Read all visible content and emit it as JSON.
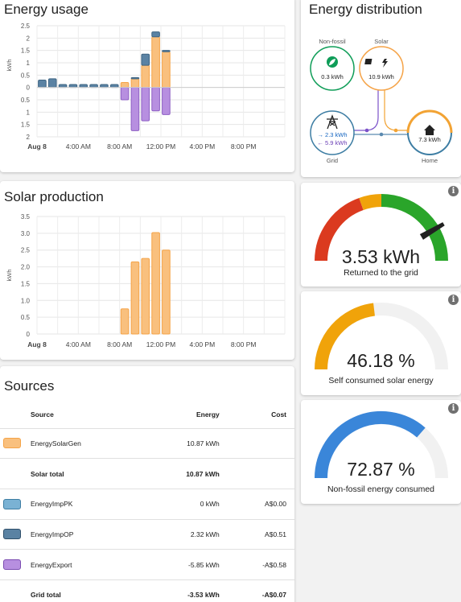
{
  "energy_usage": {
    "title": "Energy usage",
    "ylabel": "kWh",
    "chart_data": {
      "type": "bar",
      "title": "Energy usage",
      "ylabel": "kWh",
      "y_ticks_top": [
        "2.5",
        "2",
        "1.5",
        "1",
        "0.5",
        "0"
      ],
      "y_ticks_bottom": [
        "0.5",
        "1",
        "1.5",
        "2"
      ],
      "x_ticks": [
        "Aug 8",
        "4:00 AM",
        "8:00 AM",
        "12:00 PM",
        "4:00 PM",
        "8:00 PM"
      ],
      "ylim": [
        -2,
        2.5
      ],
      "hours": [
        0,
        1,
        2,
        3,
        4,
        5,
        6,
        7,
        8,
        9,
        10,
        11,
        12,
        13
      ],
      "series": [
        {
          "name": "EnergySolarGen",
          "color": "#f9c07e",
          "stroke": "#f5a347",
          "values": [
            0,
            0,
            0,
            0,
            0,
            0,
            0,
            0,
            0.2,
            0.35,
            0.9,
            2.05,
            1.45,
            0
          ]
        },
        {
          "name": "EnergyImpOP",
          "color": "#5a82a3",
          "stroke": "#3f6583",
          "values": [
            0.3,
            0.35,
            0.12,
            0.12,
            0.12,
            0.12,
            0.12,
            0.12,
            0,
            0.05,
            0.45,
            0.2,
            0.05,
            0
          ]
        },
        {
          "name": "EnergyExport",
          "color": "#b78fe0",
          "stroke": "#8d5fc4",
          "values": [
            0,
            0,
            0,
            0,
            0,
            0,
            0,
            0,
            -0.5,
            -1.75,
            -1.35,
            -0.95,
            -1.1,
            0
          ]
        }
      ]
    }
  },
  "solar_production": {
    "title": "Solar production",
    "ylabel": "kWh",
    "chart_data": {
      "type": "bar",
      "title": "Solar production",
      "ylabel": "kWh",
      "y_ticks": [
        "0",
        "0.5",
        "1.0",
        "1.5",
        "2.0",
        "2.5",
        "3.0",
        "3.5"
      ],
      "x_ticks": [
        "Aug 8",
        "4:00 AM",
        "8:00 AM",
        "12:00 PM",
        "4:00 PM",
        "8:00 PM"
      ],
      "ylim": [
        0,
        3.5
      ],
      "hours": [
        8,
        9,
        10,
        11,
        12
      ],
      "series": [
        {
          "name": "EnergySolarGen",
          "color": "#f9c07e",
          "stroke": "#f5a347",
          "values": [
            0.75,
            2.15,
            2.25,
            3.02,
            2.5
          ]
        }
      ]
    }
  },
  "distribution": {
    "title": "Energy distribution",
    "nonfossil": {
      "label": "Non-fossil",
      "value": "0.3 kWh"
    },
    "solar": {
      "label": "Solar",
      "value": "10.9 kWh"
    },
    "grid": {
      "label": "Grid",
      "import": "→ 2.3 kWh",
      "export": "← 5.9 kWh"
    },
    "home": {
      "label": "Home",
      "value": "7.3 kWh"
    }
  },
  "gauges": [
    {
      "value": "3.53 kWh",
      "label": "Returned to the grid",
      "fraction": 0.83
    },
    {
      "value": "46.18 %",
      "label": "Self consumed solar energy",
      "fraction": 0.4618,
      "color": "#f0a30a"
    },
    {
      "value": "72.87 %",
      "label": "Non-fossil energy consumed",
      "fraction": 0.7287,
      "color": "#3a86d9"
    }
  ],
  "sources": {
    "title": "Sources",
    "headers": {
      "source": "Source",
      "energy": "Energy",
      "cost": "Cost"
    },
    "rows": [
      {
        "name": "EnergySolarGen",
        "energy": "10.87 kWh",
        "cost": "",
        "color": "#f9c07e",
        "stroke": "#f5a347"
      },
      {
        "name": "Solar total",
        "energy": "10.87 kWh",
        "cost": "",
        "total": true
      },
      {
        "name": "EnergyImpPK",
        "energy": "0 kWh",
        "cost": "A$0.00",
        "color": "#7ab2d4",
        "stroke": "#3d7da3"
      },
      {
        "name": "EnergyImpOP",
        "energy": "2.32 kWh",
        "cost": "A$0.51",
        "color": "#5a82a3",
        "stroke": "#2f4f6a"
      },
      {
        "name": "EnergyExport",
        "energy": "-5.85 kWh",
        "cost": "-A$0.58",
        "color": "#b78fe0",
        "stroke": "#7a4bb0"
      },
      {
        "name": "Grid total",
        "energy": "-3.53 kWh",
        "cost": "-A$0.07",
        "total": true
      }
    ]
  }
}
